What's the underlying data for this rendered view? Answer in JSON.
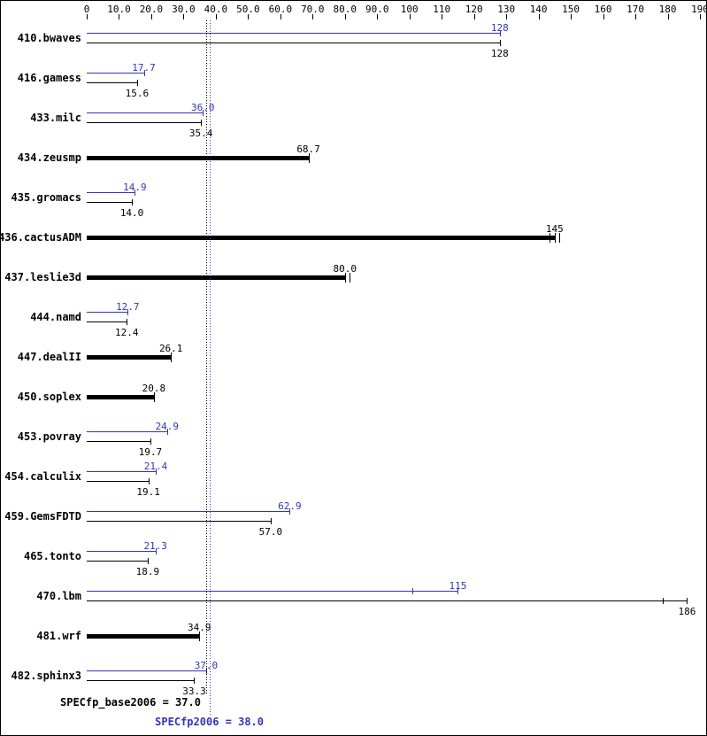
{
  "colors": {
    "base": "#000000",
    "peak": "#3333bb",
    "background": "#ffffff"
  },
  "chart_data": {
    "type": "bar",
    "orientation": "horizontal",
    "title": "",
    "xlabel": "",
    "ylabel": "",
    "xlim": [
      0,
      190
    ],
    "grid": false,
    "legend": "none",
    "axis": {
      "min": 0,
      "max": 190,
      "step": 10,
      "labels": [
        "0",
        "10.0",
        "20.0",
        "30.0",
        "40.0",
        "50.0",
        "60.0",
        "70.0",
        "80.0",
        "90.0",
        "100",
        "110",
        "120",
        "130",
        "140",
        "150",
        "160",
        "170",
        "180",
        "190"
      ]
    },
    "benchmarks": [
      {
        "name": "410.bwaves",
        "peak": 128,
        "peak_label": "128",
        "base": 128,
        "base_label": "128"
      },
      {
        "name": "416.gamess",
        "peak": 17.7,
        "peak_label": "17.7",
        "base": 15.6,
        "base_label": "15.6"
      },
      {
        "name": "433.milc",
        "peak": 36.0,
        "peak_label": "36.0",
        "base": 35.4,
        "base_label": "35.4"
      },
      {
        "name": "434.zeusmp",
        "single": 68.7,
        "label": "68.7"
      },
      {
        "name": "435.gromacs",
        "peak": 14.9,
        "peak_label": "14.9",
        "base": 14.0,
        "base_label": "14.0"
      },
      {
        "name": "436.cactusADM",
        "single": 145,
        "label": "145",
        "marks": [
          143.5,
          146.3
        ]
      },
      {
        "name": "437.leslie3d",
        "single": 80.0,
        "label": "80.0",
        "marks": [
          81.3
        ]
      },
      {
        "name": "444.namd",
        "peak": 12.7,
        "peak_label": "12.7",
        "base": 12.4,
        "base_label": "12.4"
      },
      {
        "name": "447.dealII",
        "single": 26.1,
        "label": "26.1"
      },
      {
        "name": "450.soplex",
        "single": 20.8,
        "label": "20.8"
      },
      {
        "name": "453.povray",
        "peak": 24.9,
        "peak_label": "24.9",
        "base": 19.7,
        "base_label": "19.7"
      },
      {
        "name": "454.calculix",
        "peak": 21.4,
        "peak_label": "21.4",
        "base": 19.1,
        "base_label": "19.1"
      },
      {
        "name": "459.GemsFDTD",
        "peak": 62.9,
        "peak_label": "62.9",
        "base": 57.0,
        "base_label": "57.0"
      },
      {
        "name": "465.tonto",
        "peak": 21.3,
        "peak_label": "21.3",
        "base": 18.9,
        "base_label": "18.9"
      },
      {
        "name": "470.lbm",
        "peak": 115,
        "peak_label": "115",
        "base": 186,
        "base_label": "186",
        "peak_marks": [
          101
        ],
        "base_marks": [
          178.5
        ]
      },
      {
        "name": "481.wrf",
        "single": 34.9,
        "label": "34.9"
      },
      {
        "name": "482.sphinx3",
        "peak": 37.0,
        "peak_label": "37.0",
        "base": 33.3,
        "base_label": "33.3"
      }
    ],
    "footer": {
      "base_label": "SPECfp_base2006 = 37.0",
      "base_value": 37.0,
      "peak_label": "SPECfp2006 = 38.0",
      "peak_value": 38.0
    }
  }
}
